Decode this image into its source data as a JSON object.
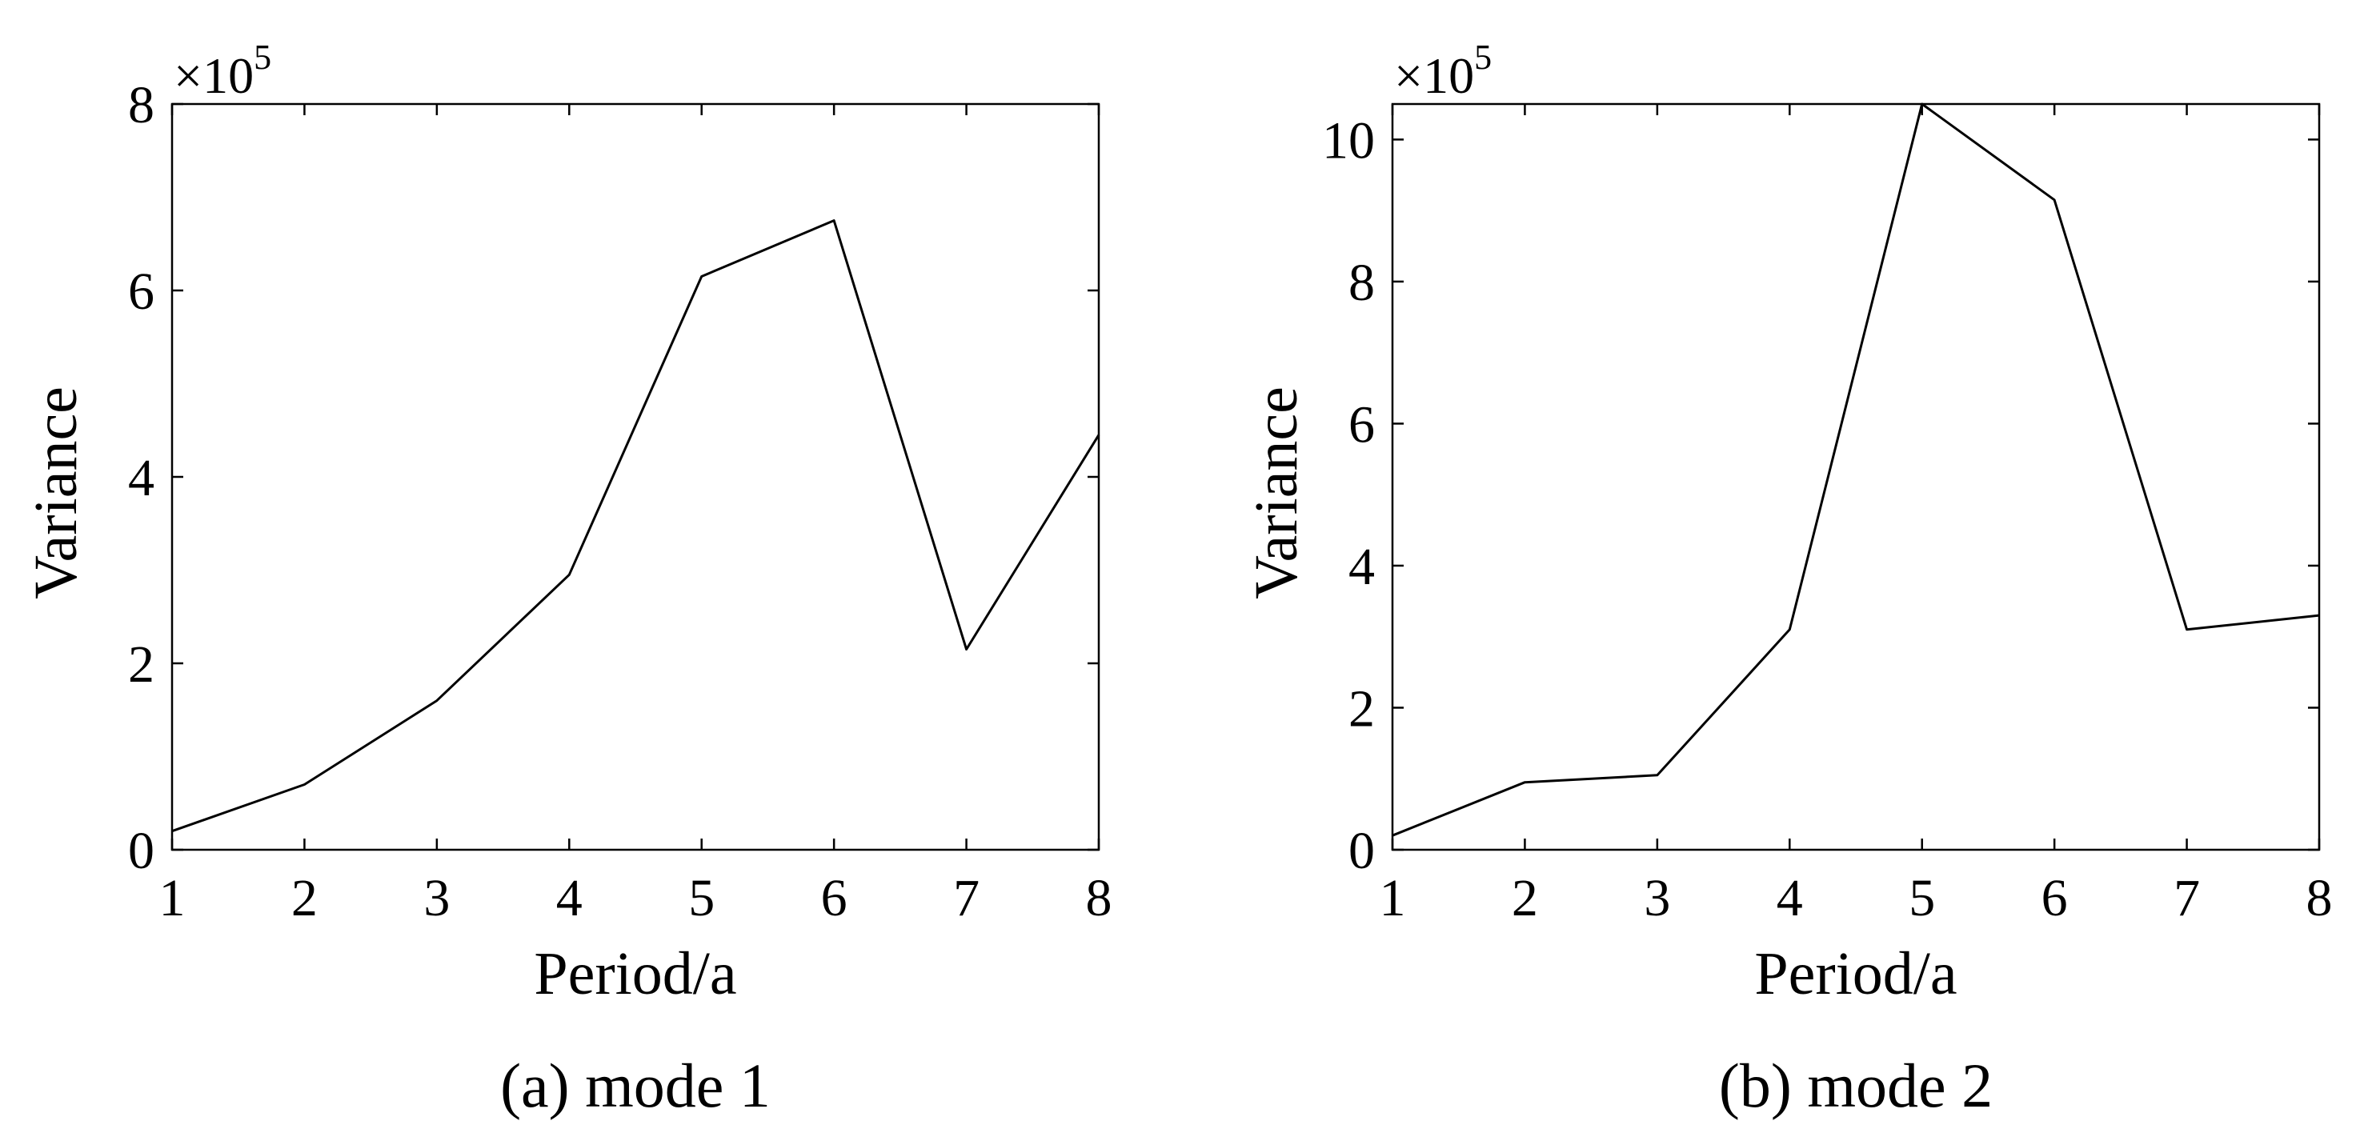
{
  "chart_data": [
    {
      "type": "line",
      "caption": "(a) mode 1",
      "xlabel": "Period/a",
      "ylabel": "Variance",
      "y_multiplier": {
        "base": "×10",
        "exponent": "5"
      },
      "xlim": [
        1,
        8
      ],
      "ylim": [
        0,
        8
      ],
      "x_ticks": [
        1,
        2,
        3,
        4,
        5,
        6,
        7,
        8
      ],
      "y_ticks": [
        0,
        2,
        4,
        6,
        8
      ],
      "grid": false,
      "series": [
        {
          "x": [
            1,
            2,
            3,
            4,
            5,
            6,
            7,
            8
          ],
          "values": [
            0.2,
            0.7,
            1.6,
            2.95,
            6.15,
            6.75,
            2.15,
            4.45
          ]
        }
      ]
    },
    {
      "type": "line",
      "caption": "(b) mode 2",
      "xlabel": "Period/a",
      "ylabel": "Variance",
      "y_multiplier": {
        "base": "×10",
        "exponent": "5"
      },
      "xlim": [
        1,
        8
      ],
      "ylim": [
        0,
        10.5
      ],
      "x_ticks": [
        1,
        2,
        3,
        4,
        5,
        6,
        7,
        8
      ],
      "y_ticks": [
        0,
        2,
        4,
        6,
        8,
        10
      ],
      "grid": false,
      "series": [
        {
          "x": [
            1,
            2,
            3,
            4,
            5,
            6,
            7,
            8
          ],
          "values": [
            0.2,
            0.95,
            1.05,
            3.1,
            10.5,
            9.15,
            3.1,
            3.3
          ]
        }
      ]
    }
  ]
}
